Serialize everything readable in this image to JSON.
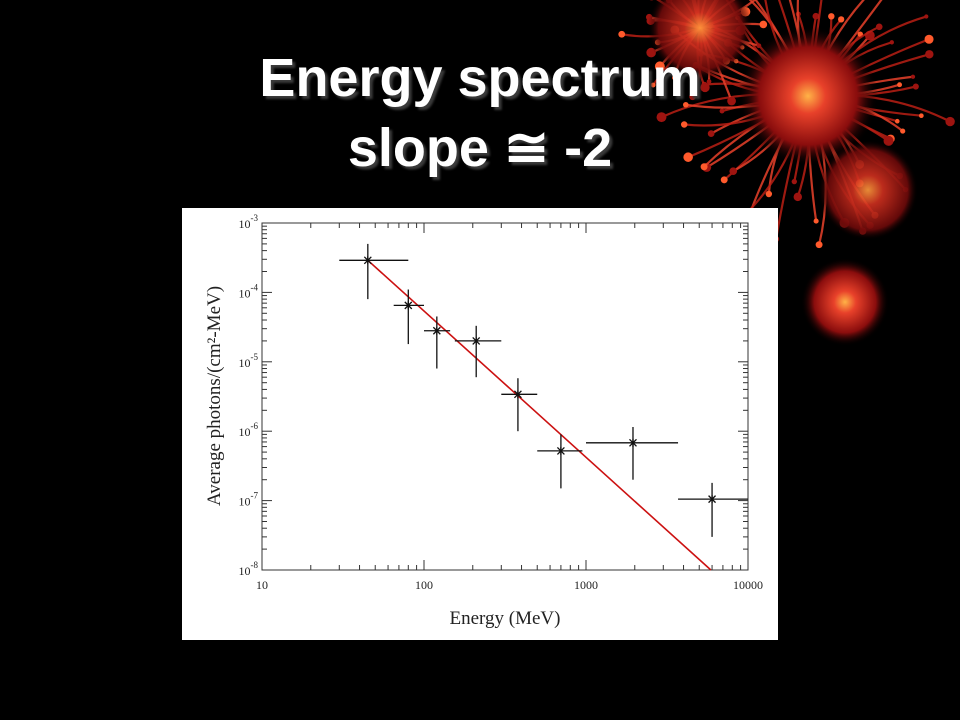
{
  "slide": {
    "title_line1": "Energy spectrum",
    "title_line2": "slope ≅ -2"
  },
  "theme": {
    "background": "#000000",
    "title_color": "#ffffff",
    "fit_line_color": "#cc1111",
    "decoration": "red-fireworks"
  },
  "chart_data": {
    "type": "scatter",
    "title": "",
    "xlabel": "Energy (MeV)",
    "ylabel": "Average photons/(cm²-MeV)",
    "x_scale": "log",
    "y_scale": "log",
    "xlim": [
      10,
      10000
    ],
    "ylim": [
      1e-08,
      0.001
    ],
    "x_ticks": [
      {
        "value": 10,
        "label": "10"
      },
      {
        "value": 100,
        "label": "100"
      },
      {
        "value": 1000,
        "label": "1000"
      },
      {
        "value": 10000,
        "label": "10000"
      }
    ],
    "y_ticks": [
      {
        "value": 0.001,
        "base": "10",
        "exp": "-3"
      },
      {
        "value": 0.0001,
        "base": "10",
        "exp": "-4"
      },
      {
        "value": 1e-05,
        "base": "10",
        "exp": "-5"
      },
      {
        "value": 1e-06,
        "base": "10",
        "exp": "-6"
      },
      {
        "value": 1e-07,
        "base": "10",
        "exp": "-7"
      },
      {
        "value": 1e-08,
        "base": "10",
        "exp": "-8"
      }
    ],
    "grid": false,
    "points": [
      {
        "x": 45,
        "y": 0.00029,
        "xlo": 30,
        "xhi": 80,
        "ylo": 8e-05,
        "yhi": 0.0005
      },
      {
        "x": 80,
        "y": 6.5e-05,
        "xlo": 65,
        "xhi": 100,
        "ylo": 1.8e-05,
        "yhi": 0.00011
      },
      {
        "x": 120,
        "y": 2.8e-05,
        "xlo": 100,
        "xhi": 145,
        "ylo": 8e-06,
        "yhi": 4.5e-05
      },
      {
        "x": 210,
        "y": 2e-05,
        "xlo": 155,
        "xhi": 300,
        "ylo": 6e-06,
        "yhi": 3.3e-05
      },
      {
        "x": 380,
        "y": 3.4e-06,
        "xlo": 300,
        "xhi": 500,
        "ylo": 1e-06,
        "yhi": 5.8e-06
      },
      {
        "x": 700,
        "y": 5.2e-07,
        "xlo": 500,
        "xhi": 950,
        "ylo": 1.5e-07,
        "yhi": 9e-07
      },
      {
        "x": 1950,
        "y": 6.8e-07,
        "xlo": 1000,
        "xhi": 3700,
        "ylo": 2e-07,
        "yhi": 1.15e-06
      },
      {
        "x": 6000,
        "y": 1.05e-07,
        "xlo": 3700,
        "xhi": 10000,
        "ylo": 3e-08,
        "yhi": 1.8e-07
      }
    ],
    "fit_line": {
      "slope": -2,
      "x": [
        45,
        5900
      ],
      "y": [
        0.00029,
        1e-08
      ]
    }
  }
}
